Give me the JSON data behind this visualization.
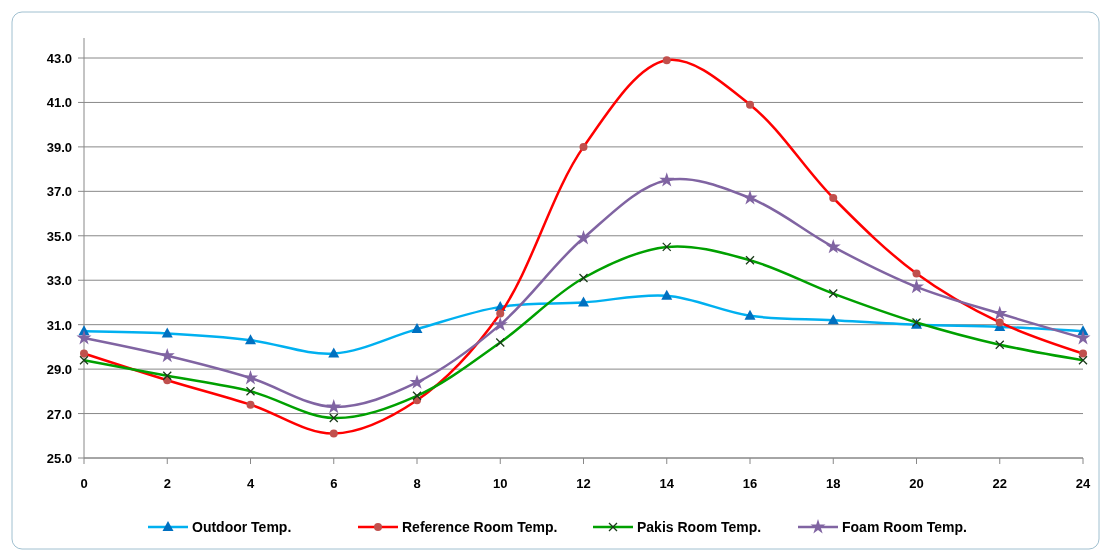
{
  "chart_data": {
    "type": "line",
    "x": [
      0,
      2,
      4,
      6,
      8,
      10,
      12,
      14,
      16,
      18,
      20,
      22,
      24
    ],
    "xlim": [
      0,
      24
    ],
    "xticks": [
      0,
      2,
      4,
      6,
      8,
      10,
      12,
      14,
      16,
      18,
      20,
      22,
      24
    ],
    "ylim": [
      25,
      43
    ],
    "yticks": [
      {
        "value": 25,
        "label": "25.0"
      },
      {
        "value": 27,
        "label": "27.0"
      },
      {
        "value": 29,
        "label": "29.0"
      },
      {
        "value": 31,
        "label": "31.0"
      },
      {
        "value": 33,
        "label": "33.0"
      },
      {
        "value": 35,
        "label": "35.0"
      },
      {
        "value": 37,
        "label": "37.0"
      },
      {
        "value": 39,
        "label": "39.0"
      },
      {
        "value": 41,
        "label": "41.0"
      },
      {
        "value": 43,
        "label": "43.0"
      }
    ],
    "grid": "y",
    "legend": "bottom",
    "series": [
      {
        "name": "Outdoor Temp.",
        "color": "#00b0f0",
        "marker": "triangle",
        "values": [
          30.7,
          30.6,
          30.3,
          29.7,
          30.8,
          31.8,
          32.0,
          32.3,
          31.4,
          31.2,
          31.0,
          30.9,
          30.7
        ]
      },
      {
        "name": "Reference Room Temp.",
        "color": "#ff0000",
        "marker": "circle",
        "values": [
          29.7,
          28.5,
          27.4,
          26.1,
          27.6,
          31.5,
          39.0,
          42.9,
          40.9,
          36.7,
          33.3,
          31.1,
          29.7
        ]
      },
      {
        "name": "Pakis Room Temp.",
        "color": "#00a000",
        "marker": "cross",
        "values": [
          29.4,
          28.7,
          28.0,
          26.8,
          27.8,
          30.2,
          33.1,
          34.5,
          33.9,
          32.4,
          31.1,
          30.1,
          29.4
        ]
      },
      {
        "name": "Foam Room Temp.",
        "color": "#8064a2",
        "marker": "star",
        "values": [
          30.4,
          29.6,
          28.6,
          27.3,
          28.4,
          31.0,
          34.9,
          37.5,
          36.7,
          34.5,
          32.7,
          31.5,
          30.4
        ]
      }
    ]
  }
}
